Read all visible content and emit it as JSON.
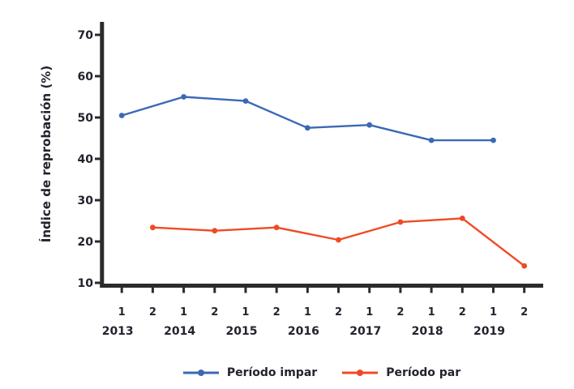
{
  "colors": {
    "axis": "#2b2b2b",
    "text": "#23232e",
    "background": "#ffffff"
  },
  "chart_data": {
    "type": "line",
    "title": "",
    "xlabel": "",
    "ylabel": "Índice de reprobación (%)",
    "ylim": [
      10,
      70
    ],
    "grid": false,
    "legend_position": "bottom",
    "y_ticks": [
      "70",
      "60",
      "50",
      "40",
      "30",
      "20",
      "10"
    ],
    "x_ticks": [
      "1",
      "2",
      "1",
      "2",
      "1",
      "2",
      "1",
      "2",
      "1",
      "2",
      "1",
      "2",
      "1",
      "2"
    ],
    "years": [
      "2013",
      "2014",
      "2015",
      "2016",
      "2017",
      "2018",
      "2019"
    ],
    "categories": [
      "2013-1",
      "2013-2",
      "2014-1",
      "2014-2",
      "2015-1",
      "2015-2",
      "2016-1",
      "2016-2",
      "2017-1",
      "2017-2",
      "2018-1",
      "2018-2",
      "2019-1",
      "2019-2"
    ],
    "series": [
      {
        "name": "Período impar",
        "color": "#3b69b5",
        "marker": "circle",
        "tick_indices": [
          0,
          2,
          4,
          6,
          8,
          10,
          12
        ],
        "x_labels": [
          "2013-1",
          "2014-1",
          "2015-1",
          "2016-1",
          "2017-1",
          "2018-1",
          "2019-1"
        ],
        "values": [
          50.5,
          55.0,
          54.0,
          47.5,
          48.2,
          44.5,
          44.5
        ]
      },
      {
        "name": "Período par",
        "color": "#ef4a26",
        "marker": "circle",
        "tick_indices": [
          1,
          3,
          5,
          7,
          9,
          11,
          13
        ],
        "x_labels": [
          "2013-2",
          "2014-2",
          "2015-2",
          "2016-2",
          "2017-2",
          "2018-2",
          "2019-2"
        ],
        "values": [
          23.4,
          22.6,
          23.4,
          20.4,
          24.7,
          25.6,
          14.1
        ]
      }
    ]
  }
}
